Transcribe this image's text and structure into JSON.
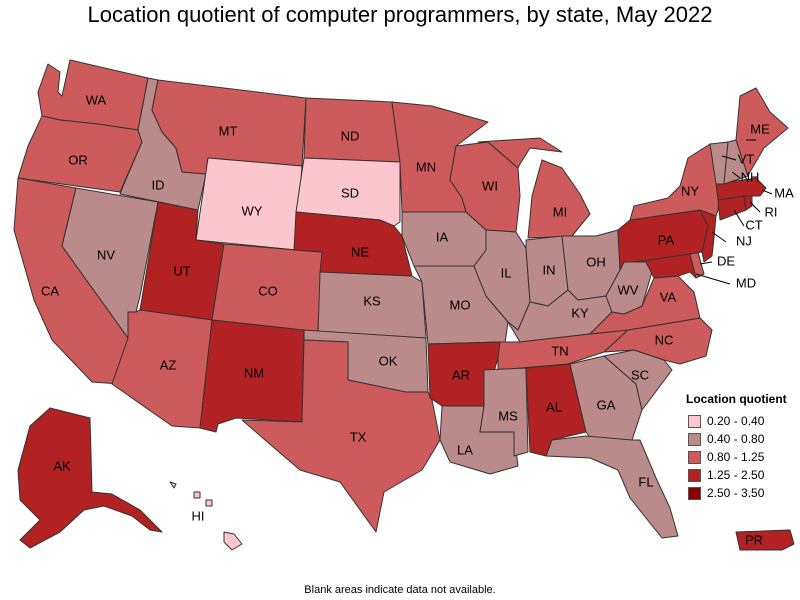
{
  "title": "Location quotient of computer programmers, by state, May 2022",
  "footnote": "Blank areas indicate data not available.",
  "legend": {
    "title": "Location quotient",
    "items": [
      {
        "label": "0.20 - 0.40",
        "color": "#fcc6cf"
      },
      {
        "label": "0.40 - 0.80",
        "color": "#bb8a8a"
      },
      {
        "label": "0.80 - 1.25",
        "color": "#cd5b5b"
      },
      {
        "label": "1.25 - 2.50",
        "color": "#b22222"
      },
      {
        "label": "2.50 - 3.50",
        "color": "#8b0000"
      }
    ]
  },
  "states": [
    {
      "abbr": "WA",
      "bin": 2
    },
    {
      "abbr": "OR",
      "bin": 2
    },
    {
      "abbr": "CA",
      "bin": 2
    },
    {
      "abbr": "ID",
      "bin": 1
    },
    {
      "abbr": "NV",
      "bin": 1
    },
    {
      "abbr": "MT",
      "bin": 2
    },
    {
      "abbr": "WY",
      "bin": 0
    },
    {
      "abbr": "UT",
      "bin": 3
    },
    {
      "abbr": "AZ",
      "bin": 2
    },
    {
      "abbr": "CO",
      "bin": 2
    },
    {
      "abbr": "NM",
      "bin": 3
    },
    {
      "abbr": "ND",
      "bin": 2
    },
    {
      "abbr": "SD",
      "bin": 0
    },
    {
      "abbr": "NE",
      "bin": 3
    },
    {
      "abbr": "KS",
      "bin": 1
    },
    {
      "abbr": "OK",
      "bin": 1
    },
    {
      "abbr": "TX",
      "bin": 2
    },
    {
      "abbr": "MN",
      "bin": 2
    },
    {
      "abbr": "IA",
      "bin": 1
    },
    {
      "abbr": "MO",
      "bin": 1
    },
    {
      "abbr": "AR",
      "bin": 3
    },
    {
      "abbr": "LA",
      "bin": 1
    },
    {
      "abbr": "WI",
      "bin": 2
    },
    {
      "abbr": "IL",
      "bin": 1
    },
    {
      "abbr": "MI",
      "bin": 2
    },
    {
      "abbr": "IN",
      "bin": 1
    },
    {
      "abbr": "OH",
      "bin": 1
    },
    {
      "abbr": "KY",
      "bin": 1
    },
    {
      "abbr": "TN",
      "bin": 2
    },
    {
      "abbr": "MS",
      "bin": 1
    },
    {
      "abbr": "AL",
      "bin": 3
    },
    {
      "abbr": "GA",
      "bin": 1
    },
    {
      "abbr": "FL",
      "bin": 1
    },
    {
      "abbr": "SC",
      "bin": 1
    },
    {
      "abbr": "NC",
      "bin": 2
    },
    {
      "abbr": "VA",
      "bin": 2
    },
    {
      "abbr": "WV",
      "bin": 1
    },
    {
      "abbr": "MD",
      "bin": 3
    },
    {
      "abbr": "DE",
      "bin": 2
    },
    {
      "abbr": "PA",
      "bin": 3
    },
    {
      "abbr": "NJ",
      "bin": 3
    },
    {
      "abbr": "NY",
      "bin": 2
    },
    {
      "abbr": "CT",
      "bin": 3
    },
    {
      "abbr": "RI",
      "bin": 3
    },
    {
      "abbr": "MA",
      "bin": 3
    },
    {
      "abbr": "VT",
      "bin": 1
    },
    {
      "abbr": "NH",
      "bin": 1
    },
    {
      "abbr": "ME",
      "bin": 2
    },
    {
      "abbr": "AK",
      "bin": 3
    },
    {
      "abbr": "HI",
      "bin": 0
    },
    {
      "abbr": "PR",
      "bin": 3
    }
  ]
}
